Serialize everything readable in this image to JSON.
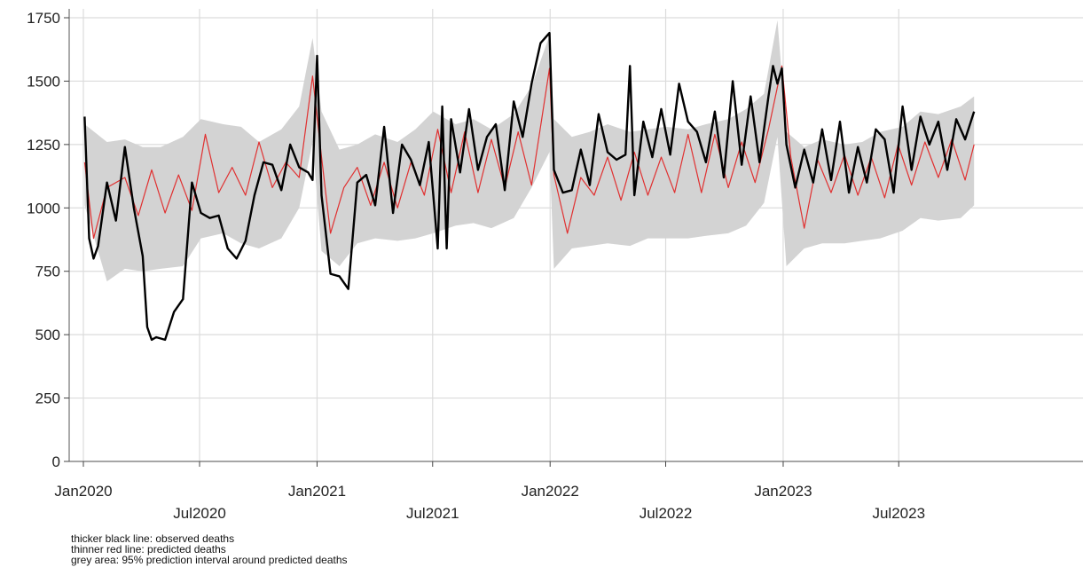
{
  "chart_data": {
    "type": "line",
    "xaxis": {
      "start": "2020-01-01",
      "end": "2023-12-31",
      "xlim": [
        "2020-01-01",
        "2023-12-31"
      ]
    },
    "ylim": [
      0,
      1750
    ],
    "y_ticks": [
      0,
      250,
      500,
      750,
      1000,
      1250,
      1500,
      1750
    ],
    "x_ticks": [
      {
        "date": "2020-01-01",
        "label": "Jan2020",
        "row": "upper"
      },
      {
        "date": "2020-07-01",
        "label": "Jul2020",
        "row": "lower"
      },
      {
        "date": "2021-01-01",
        "label": "Jan2021",
        "row": "upper"
      },
      {
        "date": "2021-07-01",
        "label": "Jul2021",
        "row": "lower"
      },
      {
        "date": "2022-01-01",
        "label": "Jan2022",
        "row": "upper"
      },
      {
        "date": "2022-07-01",
        "label": "Jul2022",
        "row": "lower"
      },
      {
        "date": "2023-01-01",
        "label": "Jan2023",
        "row": "upper"
      },
      {
        "date": "2023-07-01",
        "label": "Jul2023",
        "row": "lower"
      }
    ],
    "grid": true,
    "series": [
      {
        "style": "area",
        "color": "#d3d3d3",
        "x": [
          "2020-01-03",
          "2020-02-07",
          "2020-03-06",
          "2020-04-03",
          "2020-05-01",
          "2020-06-05",
          "2020-07-03",
          "2020-08-07",
          "2020-09-04",
          "2020-10-02",
          "2020-11-06",
          "2020-12-04",
          "2020-12-25",
          "2021-01-08",
          "2021-02-05",
          "2021-03-05",
          "2021-04-02",
          "2021-05-07",
          "2021-06-04",
          "2021-07-02",
          "2021-08-06",
          "2021-09-03",
          "2021-10-01",
          "2021-11-05",
          "2021-12-03",
          "2021-12-31",
          "2022-01-07",
          "2022-02-04",
          "2022-03-04",
          "2022-04-01",
          "2022-05-06",
          "2022-06-03",
          "2022-07-01",
          "2022-08-05",
          "2022-09-02",
          "2022-10-07",
          "2022-11-04",
          "2022-12-02",
          "2022-12-23",
          "2023-01-06",
          "2023-02-03",
          "2023-03-03",
          "2023-04-07",
          "2023-05-05",
          "2023-06-02",
          "2023-07-07",
          "2023-08-04",
          "2023-09-01",
          "2023-10-06",
          "2023-10-27"
        ],
        "upper": [
          1330,
          1260,
          1270,
          1240,
          1240,
          1280,
          1350,
          1330,
          1320,
          1260,
          1310,
          1400,
          1670,
          1380,
          1230,
          1250,
          1290,
          1260,
          1310,
          1380,
          1330,
          1350,
          1310,
          1370,
          1480,
          1680,
          1350,
          1280,
          1300,
          1330,
          1300,
          1310,
          1320,
          1310,
          1330,
          1350,
          1390,
          1450,
          1740,
          1300,
          1240,
          1270,
          1250,
          1260,
          1300,
          1320,
          1380,
          1370,
          1400,
          1440
        ],
        "lower": [
          1010,
          710,
          760,
          750,
          760,
          770,
          880,
          900,
          860,
          840,
          880,
          1000,
          1260,
          830,
          770,
          860,
          880,
          870,
          880,
          900,
          930,
          940,
          920,
          960,
          1080,
          1220,
          760,
          840,
          850,
          860,
          850,
          880,
          880,
          880,
          890,
          900,
          930,
          1020,
          1280,
          770,
          840,
          860,
          860,
          870,
          880,
          910,
          960,
          950,
          960,
          1010
        ]
      },
      {
        "name": "thinner red line: predicted deaths",
        "style": "line",
        "color": "#e03030",
        "x": [
          "2020-01-03",
          "2020-01-17",
          "2020-02-07",
          "2020-03-06",
          "2020-03-27",
          "2020-04-17",
          "2020-05-08",
          "2020-05-29",
          "2020-06-19",
          "2020-07-10",
          "2020-07-31",
          "2020-08-21",
          "2020-09-11",
          "2020-10-02",
          "2020-10-23",
          "2020-11-13",
          "2020-12-04",
          "2020-12-25",
          "2021-01-08",
          "2021-01-22",
          "2021-02-12",
          "2021-03-05",
          "2021-03-26",
          "2021-04-16",
          "2021-05-07",
          "2021-05-28",
          "2021-06-18",
          "2021-07-09",
          "2021-07-30",
          "2021-08-20",
          "2021-09-10",
          "2021-10-01",
          "2021-10-22",
          "2021-11-12",
          "2021-12-03",
          "2021-12-31",
          "2022-01-07",
          "2022-01-28",
          "2022-02-18",
          "2022-03-11",
          "2022-04-01",
          "2022-04-22",
          "2022-05-13",
          "2022-06-03",
          "2022-06-24",
          "2022-07-15",
          "2022-08-05",
          "2022-08-26",
          "2022-09-16",
          "2022-10-07",
          "2022-10-28",
          "2022-11-18",
          "2022-12-09",
          "2022-12-30",
          "2023-01-13",
          "2023-02-03",
          "2023-02-24",
          "2023-03-17",
          "2023-04-07",
          "2023-04-28",
          "2023-05-19",
          "2023-06-09",
          "2023-06-30",
          "2023-07-21",
          "2023-08-11",
          "2023-09-01",
          "2023-09-22",
          "2023-10-13",
          "2023-10-27"
        ],
        "values": [
          1180,
          880,
          1080,
          1120,
          970,
          1150,
          980,
          1130,
          990,
          1290,
          1060,
          1160,
          1050,
          1260,
          1080,
          1180,
          1120,
          1520,
          1200,
          900,
          1080,
          1160,
          1010,
          1180,
          1000,
          1180,
          1050,
          1310,
          1060,
          1300,
          1060,
          1270,
          1080,
          1300,
          1090,
          1550,
          1130,
          900,
          1120,
          1050,
          1200,
          1030,
          1220,
          1050,
          1200,
          1060,
          1290,
          1060,
          1290,
          1080,
          1260,
          1100,
          1310,
          1560,
          1200,
          920,
          1190,
          1060,
          1210,
          1050,
          1200,
          1040,
          1250,
          1090,
          1260,
          1120,
          1270,
          1110,
          1250
        ]
      },
      {
        "name": "thicker black line: observed deaths",
        "style": "line",
        "color": "#000000",
        "x": [
          "2020-01-03",
          "2020-01-10",
          "2020-01-17",
          "2020-01-24",
          "2020-02-07",
          "2020-02-21",
          "2020-03-06",
          "2020-03-20",
          "2020-04-03",
          "2020-04-10",
          "2020-04-17",
          "2020-04-24",
          "2020-05-08",
          "2020-05-22",
          "2020-06-05",
          "2020-06-19",
          "2020-07-03",
          "2020-07-17",
          "2020-07-31",
          "2020-08-14",
          "2020-08-28",
          "2020-09-11",
          "2020-09-25",
          "2020-10-09",
          "2020-10-23",
          "2020-11-06",
          "2020-11-20",
          "2020-12-04",
          "2020-12-18",
          "2020-12-25",
          "2021-01-01",
          "2021-01-08",
          "2021-01-22",
          "2021-02-05",
          "2021-02-19",
          "2021-03-05",
          "2021-03-19",
          "2021-04-02",
          "2021-04-16",
          "2021-04-30",
          "2021-05-14",
          "2021-05-28",
          "2021-06-11",
          "2021-06-25",
          "2021-07-02",
          "2021-07-09",
          "2021-07-16",
          "2021-07-23",
          "2021-07-30",
          "2021-08-13",
          "2021-08-27",
          "2021-09-10",
          "2021-09-24",
          "2021-10-08",
          "2021-10-22",
          "2021-11-05",
          "2021-11-19",
          "2021-12-03",
          "2021-12-17",
          "2021-12-31",
          "2022-01-07",
          "2022-01-21",
          "2022-02-04",
          "2022-02-18",
          "2022-03-04",
          "2022-03-18",
          "2022-04-01",
          "2022-04-15",
          "2022-04-29",
          "2022-05-06",
          "2022-05-13",
          "2022-05-27",
          "2022-06-10",
          "2022-06-24",
          "2022-07-08",
          "2022-07-22",
          "2022-08-05",
          "2022-08-19",
          "2022-09-02",
          "2022-09-16",
          "2022-09-30",
          "2022-10-14",
          "2022-10-28",
          "2022-11-11",
          "2022-11-25",
          "2022-12-09",
          "2022-12-16",
          "2022-12-23",
          "2022-12-30",
          "2023-01-06",
          "2023-01-20",
          "2023-02-03",
          "2023-02-17",
          "2023-03-03",
          "2023-03-17",
          "2023-03-31",
          "2023-04-14",
          "2023-04-28",
          "2023-05-12",
          "2023-05-26",
          "2023-06-09",
          "2023-06-23",
          "2023-07-07",
          "2023-07-21",
          "2023-08-04",
          "2023-08-18",
          "2023-09-01",
          "2023-09-15",
          "2023-09-29",
          "2023-10-13",
          "2023-10-27"
        ],
        "values": [
          1360,
          880,
          800,
          850,
          1100,
          950,
          1240,
          1000,
          810,
          530,
          480,
          490,
          480,
          590,
          640,
          1100,
          980,
          960,
          970,
          840,
          800,
          870,
          1050,
          1180,
          1170,
          1070,
          1250,
          1160,
          1140,
          1110,
          1600,
          1050,
          740,
          730,
          680,
          1100,
          1130,
          1010,
          1320,
          980,
          1250,
          1190,
          1090,
          1260,
          1050,
          840,
          1400,
          840,
          1350,
          1140,
          1390,
          1150,
          1280,
          1330,
          1070,
          1420,
          1280,
          1490,
          1650,
          1690,
          1150,
          1060,
          1070,
          1230,
          1090,
          1370,
          1220,
          1190,
          1210,
          1560,
          1050,
          1340,
          1200,
          1390,
          1210,
          1490,
          1340,
          1300,
          1180,
          1380,
          1120,
          1500,
          1170,
          1440,
          1180,
          1440,
          1560,
          1490,
          1550,
          1250,
          1080,
          1230,
          1100,
          1310,
          1110,
          1340,
          1060,
          1240,
          1100,
          1310,
          1270,
          1060,
          1400,
          1150,
          1360,
          1250,
          1340,
          1150,
          1350,
          1270,
          1380
        ]
      }
    ],
    "notes": [
      "thicker black line: observed deaths",
      "thinner red line: predicted deaths",
      "grey area: 95% prediction interval around predicted deaths"
    ]
  }
}
